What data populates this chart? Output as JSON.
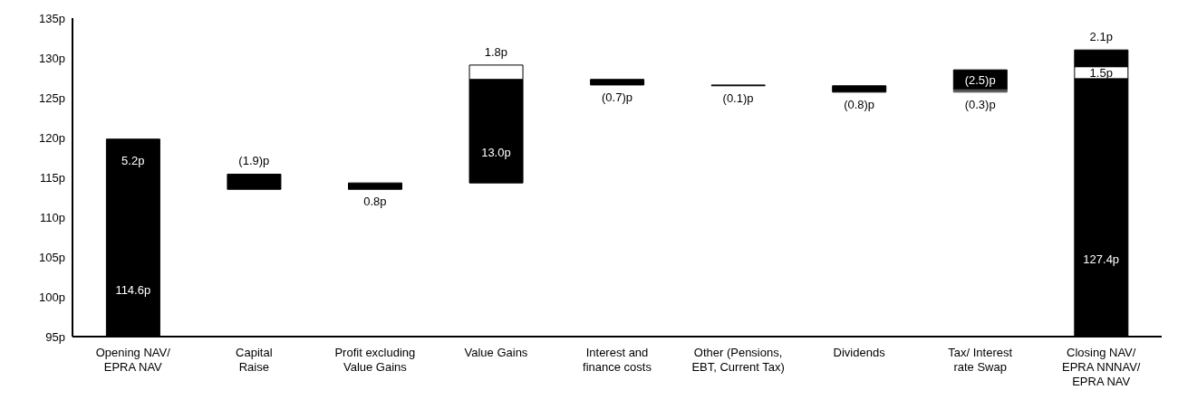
{
  "chart_data": {
    "type": "bar",
    "categories": [
      "Opening NAV/\nEPRA NAV",
      "Capital\nRaise",
      "Profit excluding\nValue Gains",
      "Value Gains",
      "Interest and\nfinance costs",
      "Other (Pensions,\nEBT, Current Tax)",
      "Dividends",
      "Tax/ Interest\nrate Swap",
      "Closing NAV/\nEPRA NNNAV/\nEPRA NAV"
    ],
    "series": [
      {
        "values": [
          114.6,
          -1.9,
          0.8,
          13.0,
          -0.7,
          -0.1,
          -0.8,
          -2.5,
          127.4
        ],
        "base": [
          null,
          115.4,
          113.5,
          114.3,
          127.3,
          126.6,
          126.5,
          128.5,
          null
        ],
        "colors": [
          "#000000",
          "#000000",
          "#000000",
          "#000000",
          "#000000",
          "#000000",
          "#000000",
          "#000000",
          "#000000"
        ],
        "value_labels": [
          "114.6p",
          "(1.9)p",
          "0.8p",
          "13.0p",
          "(0.7)p",
          "(0.1)p",
          "(0.8)p",
          "(2.5)p",
          "127.4p"
        ]
      },
      {
        "values": [
          5.2,
          null,
          null,
          1.8,
          null,
          null,
          null,
          -0.3,
          1.5
        ],
        "base": [
          114.6,
          null,
          null,
          127.3,
          null,
          null,
          null,
          126.0,
          127.4
        ],
        "colors": [
          "#000000",
          null,
          null,
          "#ffffff",
          null,
          null,
          null,
          "#555555",
          "#ffffff"
        ],
        "value_labels": [
          "5.2p",
          null,
          null,
          "1.8p",
          null,
          null,
          null,
          "(0.3)p",
          "1.5p"
        ]
      },
      {
        "values": [
          null,
          null,
          null,
          null,
          null,
          null,
          null,
          null,
          2.1
        ],
        "base": [
          null,
          null,
          null,
          null,
          null,
          null,
          null,
          null,
          128.9
        ],
        "colors": [
          null,
          null,
          null,
          null,
          null,
          null,
          null,
          null,
          "#000000"
        ],
        "value_labels": [
          null,
          null,
          null,
          null,
          null,
          null,
          null,
          null,
          "2.1p"
        ]
      }
    ],
    "ylim": [
      95,
      135
    ],
    "yticks": [
      {
        "value": 95,
        "label": "95p"
      },
      {
        "value": 100,
        "label": "100p"
      },
      {
        "value": 105,
        "label": "105p"
      },
      {
        "value": 110,
        "label": "110p"
      },
      {
        "value": 115,
        "label": "115p"
      },
      {
        "value": 120,
        "label": "120p"
      },
      {
        "value": 125,
        "label": "125p"
      },
      {
        "value": 130,
        "label": "130p"
      },
      {
        "value": 135,
        "label": "135p"
      }
    ]
  }
}
